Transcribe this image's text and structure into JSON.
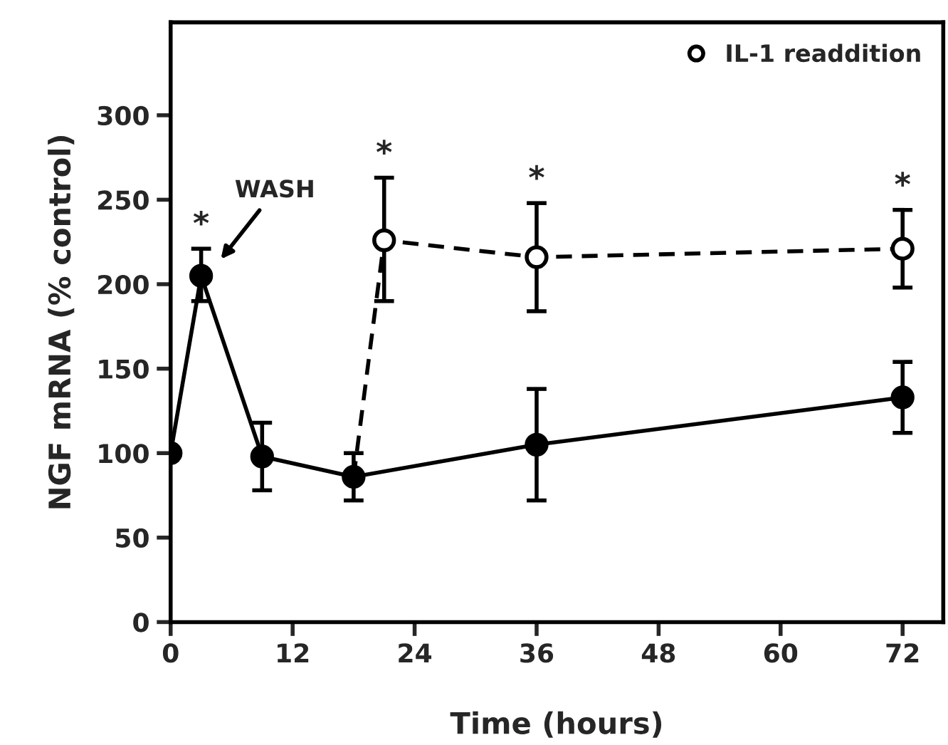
{
  "chart_data": {
    "type": "line",
    "xlabel": "Time (hours)",
    "ylabel": "NGF mRNA (% control)",
    "xlim": [
      0,
      76
    ],
    "xticks": [
      0,
      12,
      24,
      36,
      48,
      60,
      72
    ],
    "ylim": [
      0,
      355
    ],
    "yticks": [
      0,
      50,
      100,
      150,
      200,
      250,
      300
    ],
    "grid": false,
    "legend": "top right",
    "series": [
      {
        "name": "IL-1 readdition",
        "color": "#000000",
        "x": [
          18,
          21,
          36,
          72
        ],
        "values": [
          86,
          226,
          216,
          221
        ],
        "errors": [
          null,
          [
            190,
            263
          ],
          [
            184,
            248
          ],
          [
            198,
            244
          ]
        ],
        "marker": "circle",
        "line_style": "dashed"
      },
      {
        "color": "#000000",
        "x": [
          0,
          3,
          9,
          18,
          36,
          72
        ],
        "values": [
          100,
          205,
          98,
          86,
          105,
          133
        ],
        "errors": [
          null,
          [
            190,
            221
          ],
          [
            78,
            118
          ],
          [
            72,
            100
          ],
          [
            72,
            138
          ],
          [
            112,
            154
          ]
        ],
        "marker": "circle",
        "line_style": "solid"
      }
    ],
    "annotations": [
      "WASH",
      {
        "text": "*",
        "x": 3,
        "y": 221
      },
      {
        "text": "*",
        "x": 21,
        "y": 263
      },
      {
        "text": "*",
        "x": 36,
        "y": 248
      },
      {
        "text": "*",
        "x": 72,
        "y": 244
      }
    ]
  }
}
